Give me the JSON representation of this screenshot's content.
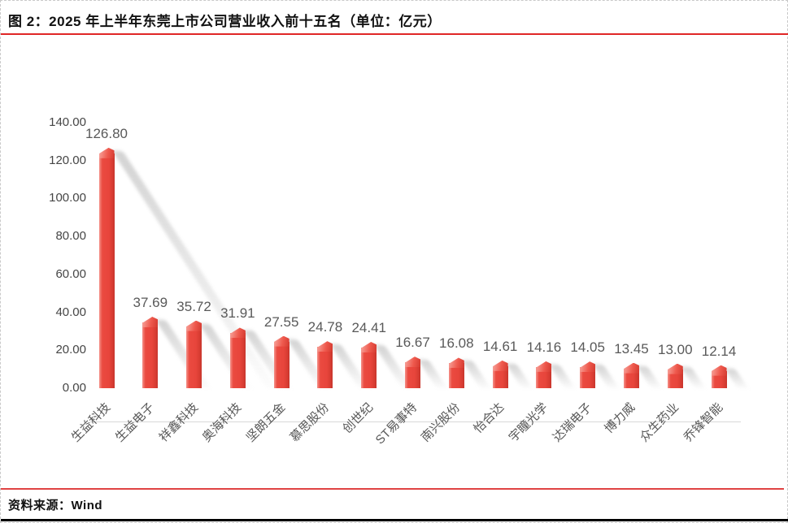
{
  "figure": {
    "title": "图 2：2025 年上半年东莞上市公司营业收入前十五名（单位：亿元）",
    "source": "资料来源：Wind"
  },
  "colors": {
    "bar_red": "#e8453c",
    "bar_side_dark": "#c6362d",
    "bar_cap_light": "#ef5a4e",
    "title_rule_red": "#e02626",
    "source_rule_red": "#e04343",
    "bottom_rule_black": "#000000",
    "axis_gray": "#d9d9d9",
    "label_gray": "#595959"
  },
  "chart_data": {
    "type": "bar",
    "title": "2025 年上半年东莞上市公司营业收入前十五名",
    "unit": "亿元",
    "categories": [
      "生益科技",
      "生益电子",
      "祥鑫科技",
      "奥海科技",
      "坚朗五金",
      "慕思股份",
      "创世纪",
      "ST易事特",
      "南兴股份",
      "怡合达",
      "宇瞳光学",
      "达瑞电子",
      "博力威",
      "众生药业",
      "乔锋智能"
    ],
    "values": [
      126.8,
      37.69,
      35.72,
      31.91,
      27.55,
      24.78,
      24.41,
      16.67,
      16.08,
      14.61,
      14.16,
      14.05,
      13.45,
      13.0,
      12.14
    ],
    "value_labels": [
      "126.80",
      "37.69",
      "35.72",
      "31.91",
      "27.55",
      "24.78",
      "24.41",
      "16.67",
      "16.08",
      "14.61",
      "14.16",
      "14.05",
      "13.45",
      "13.00",
      "12.14"
    ],
    "xlabel": "",
    "ylabel": "",
    "ylim": [
      0,
      140
    ],
    "y_tick_step": 20,
    "y_ticks": [
      "0.00",
      "20.00",
      "40.00",
      "60.00",
      "80.00",
      "100.00",
      "120.00",
      "140.00"
    ],
    "grid": false,
    "legend": false,
    "bar_style": "3d-beveled",
    "category_label_rotation_deg": 45
  }
}
